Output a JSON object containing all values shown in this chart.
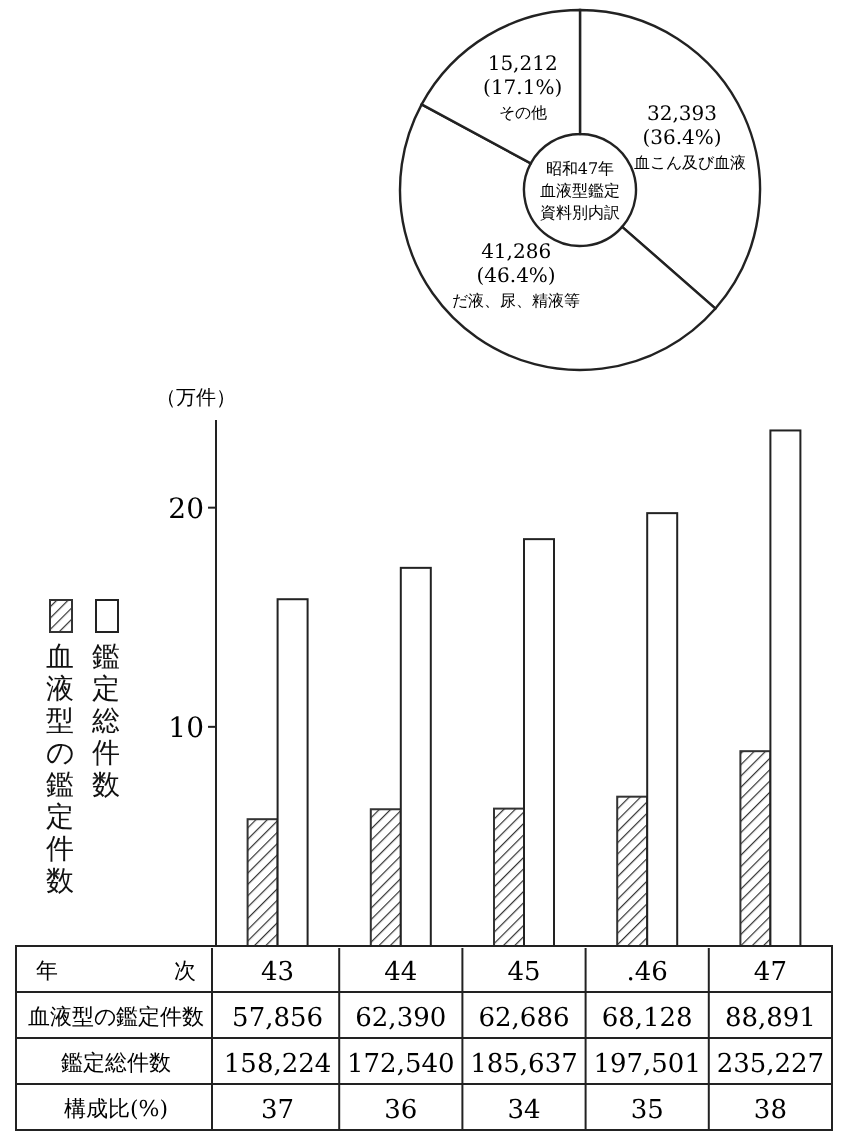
{
  "chart_data": [
    {
      "type": "donut",
      "title": "昭和47年血液型鑑定資料別内訳",
      "categories": [
        "血こん及び血液",
        "だ液、尿、精液等",
        "その他"
      ],
      "values": [
        32393,
        41286,
        15212
      ],
      "value_labels": [
        "32,393 (36.4%)",
        "41,286 (46.4%)",
        "15,212 (17.1%)"
      ],
      "colors": [
        "#ffffff",
        "#ffffff",
        "#ffffff"
      ]
    },
    {
      "type": "bar",
      "ylabel": "（万件）",
      "xlabel": "年　　次",
      "categories": [
        "43",
        "44",
        "45",
        ".46",
        "47"
      ],
      "ylim": [
        0,
        24
      ],
      "yticks": [
        10,
        20
      ],
      "legend": "left",
      "grid": false,
      "series": [
        {
          "name": "血液型の鑑定件数",
          "color": "#333333",
          "values": [
            5.7856,
            6.239,
            6.2686,
            6.8128,
            8.8891
          ]
        },
        {
          "name": "鑑定総件数",
          "color": "#ffffff",
          "values": [
            15.8224,
            17.254,
            18.5637,
            19.7501,
            23.5227
          ]
        }
      ],
      "annotations": [
        "血液型の鑑定件数",
        "57,856",
        "62,390",
        "62,686",
        "68,128",
        "88,891",
        "鑑定総件数",
        "158,224",
        "172,540",
        "185,637",
        "197,501",
        "235,227",
        "構成比(%)",
        "37",
        "36",
        "34",
        "35",
        "38"
      ]
    }
  ]
}
